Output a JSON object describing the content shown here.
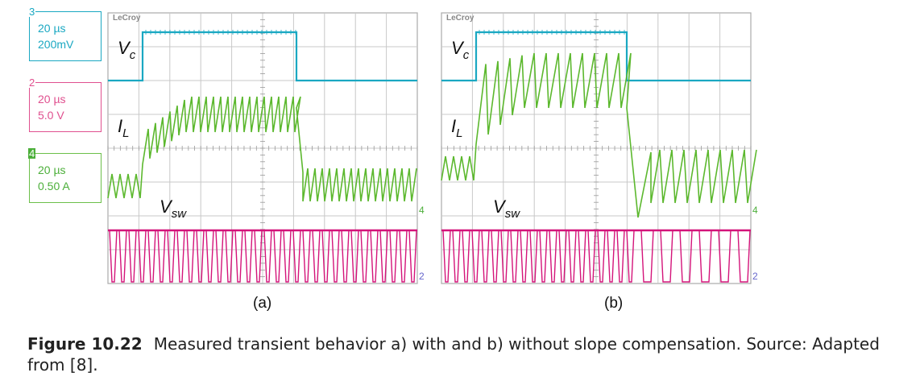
{
  "legend": [
    {
      "number": "3",
      "timebase": "20 µs",
      "scale": "200mV",
      "color": "#1aa8c2"
    },
    {
      "number": "2",
      "timebase": "20 µs",
      "scale": "5.0 V",
      "color": "#e0508f"
    },
    {
      "number": "4",
      "timebase": "20 µs",
      "scale": "0.50 A",
      "color": "#4caf3a"
    }
  ],
  "brand": "LeCroy",
  "signals": {
    "vc": {
      "main": "V",
      "sub": "c"
    },
    "il": {
      "main": "I",
      "sub": "L"
    },
    "vsw": {
      "main": "V",
      "sub": "sw"
    }
  },
  "channel_markers": {
    "il": "4",
    "vsw": "2"
  },
  "panels": [
    {
      "label": "(a)"
    },
    {
      "label": "(b)"
    }
  ],
  "colors": {
    "vc": "#1aa8c2",
    "il": "#5cb82e",
    "vsw": "#d4147a",
    "grid": "#c8c8c8",
    "frame": "#aaaaaa"
  },
  "caption": {
    "label": "Figure 10.22",
    "text": "Measured transient behavior a) with and b) without slope compensation. Source: Adapted from [8]."
  }
}
